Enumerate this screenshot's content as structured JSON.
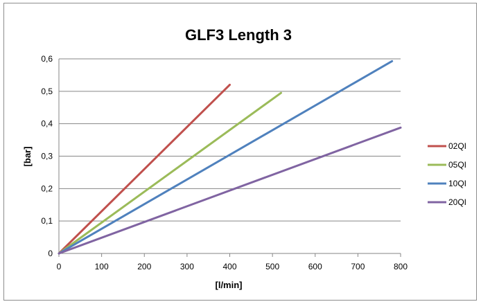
{
  "chart_data": {
    "type": "line",
    "title": "GLF3 Length 3",
    "xlabel": "[l/min]",
    "ylabel": "[bar]",
    "xlim": [
      0,
      800
    ],
    "ylim": [
      0,
      0.6
    ],
    "x_ticks": [
      "0",
      "100",
      "200",
      "300",
      "400",
      "500",
      "600",
      "700",
      "800"
    ],
    "y_ticks": [
      "0",
      "0,1",
      "0,2",
      "0,3",
      "0,4",
      "0,5",
      "0,6"
    ],
    "grid": true,
    "legend_position": "right",
    "series": [
      {
        "name": "02QI",
        "color": "#c0504d",
        "points": [
          [
            0,
            0
          ],
          [
            400,
            0.52
          ]
        ]
      },
      {
        "name": "05QI",
        "color": "#9bbb59",
        "points": [
          [
            0,
            0
          ],
          [
            520,
            0.495
          ]
        ]
      },
      {
        "name": "10QI",
        "color": "#4f81bd",
        "points": [
          [
            0,
            0
          ],
          [
            780,
            0.593
          ]
        ]
      },
      {
        "name": "20QI",
        "color": "#8064a2",
        "points": [
          [
            0,
            0
          ],
          [
            800,
            0.388
          ]
        ]
      }
    ]
  }
}
